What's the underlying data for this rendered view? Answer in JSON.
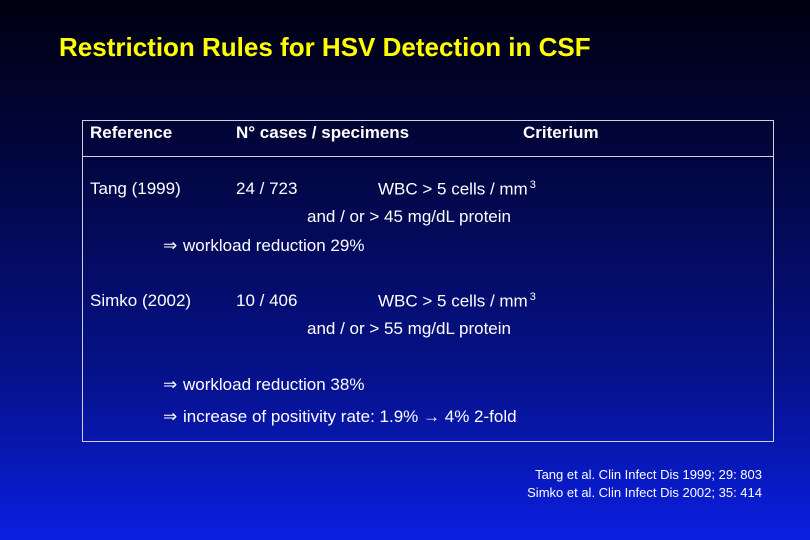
{
  "title": "Restriction Rules for HSV Detection in CSF",
  "table": {
    "headers": {
      "reference": "Reference",
      "cases": "N° cases / specimens",
      "criterium": "Criterium"
    },
    "rows": [
      {
        "reference": "Tang (1999)",
        "cases": "24 / 723",
        "criterium_line1": "WBC > 5 cells / mm",
        "criterium_sup": "3",
        "criterium_line2": "and / or > 45 mg/dL protein",
        "conclusions": [
          {
            "arrow": "⇒",
            "text": "workload reduction 29%"
          }
        ]
      },
      {
        "reference": "Simko (2002)",
        "cases": "10 / 406",
        "criterium_line1": "WBC > 5 cells / mm",
        "criterium_sup": "3",
        "criterium_line2": "and / or > 55 mg/dL protein",
        "conclusions": [
          {
            "arrow": "⇒",
            "text": "workload reduction 38%"
          },
          {
            "arrow": "⇒",
            "text_a": "increase of positivity rate: 1.9%",
            "mid_arrow": "→",
            "text_b": "4% 2-fold"
          }
        ]
      }
    ]
  },
  "references": [
    "Tang et al. Clin Infect Dis 1999; 29: 803",
    "Simko et al. Clin Infect Dis 2002; 35: 414"
  ],
  "colors": {
    "title": "#ffff00",
    "text": "#ffffff",
    "background_top": "#000010",
    "background_bottom": "#0a1fe0"
  }
}
